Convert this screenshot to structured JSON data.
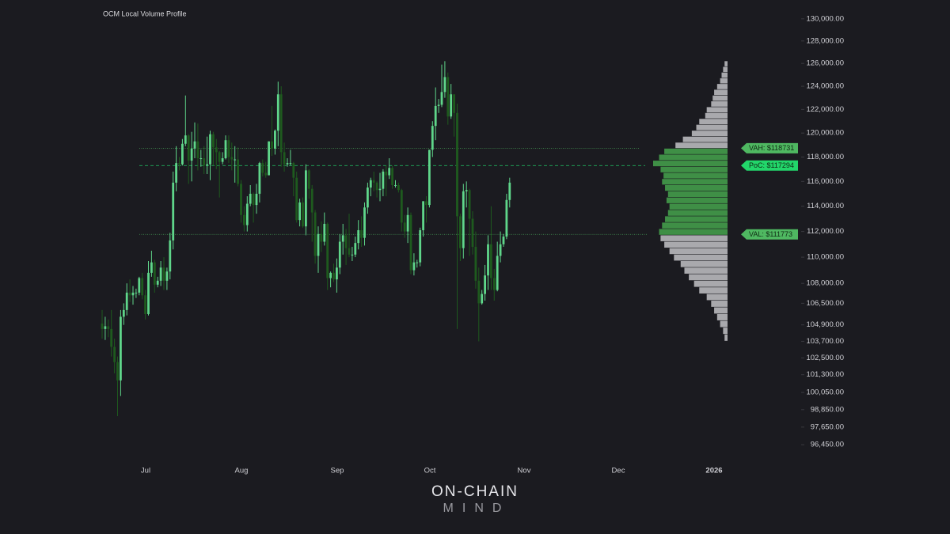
{
  "chart_data": {
    "type": "candlestick",
    "title": "OCM Local Volume Profile",
    "brand": {
      "line1": "ON-CHAIN",
      "line2": "MIND"
    },
    "log_scale": true,
    "ylim": [
      95500,
      131000
    ],
    "yticks": [
      {
        "value": 130000,
        "label": "130,000.00"
      },
      {
        "value": 128000,
        "label": "128,000.00"
      },
      {
        "value": 126000,
        "label": "126,000.00"
      },
      {
        "value": 124000,
        "label": "124,000.00"
      },
      {
        "value": 122000,
        "label": "122,000.00"
      },
      {
        "value": 120000,
        "label": "120,000.00"
      },
      {
        "value": 118000,
        "label": "118,000.00"
      },
      {
        "value": 116000,
        "label": "116,000.00"
      },
      {
        "value": 114000,
        "label": "114,000.00"
      },
      {
        "value": 112000,
        "label": "112,000.00"
      },
      {
        "value": 110000,
        "label": "110,000.00"
      },
      {
        "value": 108000,
        "label": "108,000.00"
      },
      {
        "value": 106500,
        "label": "106,500.00"
      },
      {
        "value": 104900,
        "label": "104,900.00"
      },
      {
        "value": 103700,
        "label": "103,700.00"
      },
      {
        "value": 102500,
        "label": "102,500.00"
      },
      {
        "value": 101300,
        "label": "101,300.00"
      },
      {
        "value": 100050,
        "label": "100,050.00"
      },
      {
        "value": 98850,
        "label": "98,850.00"
      },
      {
        "value": 97650,
        "label": "97,650.00"
      },
      {
        "value": 96450,
        "label": "96,450.00"
      }
    ],
    "xticks": [
      "Jul",
      "Aug",
      "Sep",
      "Oct",
      "Nov",
      "Dec",
      "2026"
    ],
    "up_color": "#5fd68a",
    "down_color": "#1e5a1e",
    "candles": [
      [
        105000,
        106000,
        103900,
        104600
      ],
      [
        104600,
        105500,
        103800,
        104800
      ],
      [
        104800,
        105300,
        104000,
        104600
      ],
      [
        104600,
        106000,
        102600,
        103300
      ],
      [
        103300,
        103900,
        101400,
        102200
      ],
      [
        102200,
        102600,
        98400,
        100900
      ],
      [
        100900,
        106000,
        99800,
        105500
      ],
      [
        105500,
        106500,
        104900,
        106000
      ],
      [
        106000,
        108000,
        105600,
        107300
      ],
      [
        107300,
        108300,
        106600,
        107100
      ],
      [
        107100,
        107800,
        106400,
        107300
      ],
      [
        107300,
        107600,
        106900,
        107300
      ],
      [
        107300,
        108500,
        107100,
        108400
      ],
      [
        108400,
        108800,
        106800,
        107100
      ],
      [
        107100,
        107500,
        105300,
        105700
      ],
      [
        105700,
        109700,
        105600,
        108800
      ],
      [
        108800,
        110500,
        108500,
        109600
      ],
      [
        109600,
        109800,
        107300,
        107900
      ],
      [
        107900,
        108500,
        107700,
        108200
      ],
      [
        108200,
        109700,
        107800,
        109200
      ],
      [
        109200,
        110000,
        107500,
        108200
      ],
      [
        108200,
        109200,
        107500,
        108900
      ],
      [
        108900,
        111900,
        108300,
        111300
      ],
      [
        111300,
        116800,
        110600,
        115900
      ],
      [
        115900,
        118900,
        115200,
        117500
      ],
      [
        117500,
        118000,
        116900,
        117400
      ],
      [
        117400,
        119500,
        117300,
        119100
      ],
      [
        119100,
        123200,
        118900,
        119800
      ],
      [
        119800,
        119900,
        115800,
        117700
      ],
      [
        117700,
        120100,
        116000,
        118700
      ],
      [
        118700,
        120900,
        117900,
        119300
      ],
      [
        119300,
        120800,
        116900,
        117900
      ],
      [
        117900,
        118600,
        117200,
        117900
      ],
      [
        117900,
        118900,
        116600,
        117300
      ],
      [
        117300,
        119700,
        116600,
        117400
      ],
      [
        117400,
        120200,
        116100,
        119900
      ],
      [
        119900,
        120100,
        117300,
        118800
      ],
      [
        118800,
        119500,
        117000,
        118400
      ],
      [
        118400,
        118500,
        114700,
        117600
      ],
      [
        117600,
        118400,
        117400,
        117900
      ],
      [
        117900,
        119800,
        117800,
        119400
      ],
      [
        119400,
        119800,
        117500,
        118000
      ],
      [
        118000,
        119200,
        116900,
        117800
      ],
      [
        117800,
        118900,
        115900,
        117800
      ],
      [
        117800,
        118800,
        115600,
        115800
      ],
      [
        115800,
        116100,
        112700,
        113300
      ],
      [
        113300,
        114000,
        112000,
        112500
      ],
      [
        112500,
        114800,
        112000,
        114200
      ],
      [
        114200,
        115700,
        114000,
        115000
      ],
      [
        115000,
        115100,
        112700,
        114100
      ],
      [
        114100,
        115800,
        113400,
        115000
      ],
      [
        115000,
        117600,
        114300,
        117500
      ],
      [
        117500,
        117800,
        116400,
        116700
      ],
      [
        116700,
        117600,
        116300,
        116500
      ],
      [
        116500,
        119300,
        116500,
        119300
      ],
      [
        119300,
        122300,
        118100,
        118700
      ],
      [
        118700,
        120300,
        118200,
        120200
      ],
      [
        120200,
        124400,
        118900,
        123300
      ],
      [
        123300,
        124000,
        117200,
        118400
      ],
      [
        118400,
        119200,
        116800,
        117400
      ],
      [
        117400,
        117900,
        117200,
        117500
      ],
      [
        117500,
        118600,
        117300,
        117500
      ],
      [
        117500,
        117600,
        114800,
        116300
      ],
      [
        116300,
        116800,
        112700,
        112900
      ],
      [
        112900,
        114600,
        112400,
        114300
      ],
      [
        114300,
        114700,
        112300,
        112400
      ],
      [
        112400,
        117400,
        111700,
        116900
      ],
      [
        116900,
        117000,
        114600,
        115400
      ],
      [
        115400,
        115700,
        111200,
        113500
      ],
      [
        113500,
        113700,
        109500,
        110100
      ],
      [
        110100,
        112400,
        108800,
        111800
      ],
      [
        111800,
        112800,
        110400,
        111200
      ],
      [
        111200,
        113500,
        110900,
        112600
      ],
      [
        112600,
        112700,
        107500,
        108400
      ],
      [
        108400,
        108900,
        107700,
        108800
      ],
      [
        108800,
        109500,
        108100,
        108300
      ],
      [
        108300,
        109900,
        107300,
        109200
      ],
      [
        109200,
        111800,
        108700,
        111200
      ],
      [
        111200,
        112600,
        110200,
        111700
      ],
      [
        111700,
        112200,
        109400,
        110700
      ],
      [
        110700,
        113400,
        110000,
        110200
      ],
      [
        110200,
        110800,
        109700,
        110200
      ],
      [
        110200,
        111600,
        110000,
        111100
      ],
      [
        111100,
        112900,
        110600,
        112100
      ],
      [
        112100,
        113200,
        110800,
        111500
      ],
      [
        111500,
        114300,
        110900,
        113900
      ],
      [
        113900,
        115900,
        113400,
        115500
      ],
      [
        115500,
        116300,
        114800,
        116100
      ],
      [
        116100,
        116800,
        115200,
        115900
      ],
      [
        115900,
        116000,
        114700,
        115300
      ],
      [
        115300,
        116700,
        114400,
        115400
      ],
      [
        115400,
        117000,
        114800,
        116800
      ],
      [
        116800,
        117300,
        114800,
        116500
      ],
      [
        116500,
        117900,
        116200,
        117100
      ],
      [
        117100,
        117300,
        115400,
        115700
      ],
      [
        115700,
        116100,
        115500,
        115700
      ],
      [
        115700,
        115900,
        115100,
        115300
      ],
      [
        115300,
        115400,
        112000,
        112700
      ],
      [
        112700,
        113300,
        111500,
        112000
      ],
      [
        112000,
        113900,
        111100,
        113300
      ],
      [
        113300,
        113500,
        108700,
        109000
      ],
      [
        109000,
        110300,
        108600,
        109600
      ],
      [
        109600,
        109800,
        109200,
        109600
      ],
      [
        109600,
        112300,
        109300,
        112100
      ],
      [
        112100,
        114400,
        111600,
        114400
      ],
      [
        114400,
        114800,
        112700,
        114100
      ],
      [
        114100,
        118600,
        113900,
        118600
      ],
      [
        118600,
        121000,
        118000,
        120600
      ],
      [
        120600,
        123900,
        119400,
        122300
      ],
      [
        122300,
        122900,
        121700,
        122400
      ],
      [
        122400,
        125900,
        122200,
        123500
      ],
      [
        123500,
        126200,
        123000,
        124800
      ],
      [
        124800,
        125200,
        120700,
        121400
      ],
      [
        121400,
        124200,
        121200,
        123300
      ],
      [
        123300,
        123300,
        119700,
        121700
      ],
      [
        121700,
        122500,
        104600,
        113200
      ],
      [
        113200,
        113400,
        109700,
        110700
      ],
      [
        110700,
        115800,
        109900,
        115200
      ],
      [
        115200,
        116000,
        113900,
        115300
      ],
      [
        115300,
        115400,
        110100,
        113000
      ],
      [
        113000,
        113600,
        110200,
        110800
      ],
      [
        110800,
        112000,
        107600,
        108200
      ],
      [
        108200,
        109200,
        103700,
        106500
      ],
      [
        106500,
        107500,
        106400,
        107200
      ],
      [
        107200,
        109400,
        106700,
        108600
      ],
      [
        108600,
        111700,
        107500,
        111000
      ],
      [
        111000,
        114000,
        107500,
        108400
      ],
      [
        108400,
        109100,
        106700,
        107500
      ],
      [
        107500,
        111200,
        107400,
        110100
      ],
      [
        110100,
        112000,
        109600,
        111000
      ],
      [
        111000,
        111800,
        110800,
        111600
      ],
      [
        111600,
        115000,
        111400,
        114500
      ],
      [
        114500,
        116300,
        113900,
        115900
      ]
    ],
    "profile": {
      "bins": [
        103700,
        104200,
        104700,
        105200,
        105700,
        106200,
        106700,
        107200,
        107700,
        108200,
        108700,
        109200,
        109700,
        110200,
        110700,
        111200,
        111700,
        112200,
        112700,
        113200,
        113700,
        114200,
        114700,
        115200,
        115700,
        116200,
        116700,
        117200,
        117700,
        118200,
        118700,
        119200,
        119700,
        120200,
        120700,
        121200,
        121700,
        122200,
        122700,
        123200,
        123700,
        124200,
        124700,
        125200,
        125700,
        126200
      ],
      "values": [
        4,
        6,
        10,
        14,
        18,
        22,
        28,
        38,
        45,
        52,
        58,
        63,
        72,
        78,
        85,
        90,
        92,
        88,
        84,
        80,
        78,
        82,
        80,
        84,
        88,
        86,
        90,
        100,
        92,
        85,
        70,
        60,
        48,
        42,
        38,
        30,
        28,
        22,
        20,
        18,
        14,
        10,
        8,
        6,
        4
      ],
      "value_area_color": "#3f8f46",
      "outside_color": "#a9a9ad"
    },
    "levels": [
      {
        "name": "VAH",
        "value": 118731,
        "label": "VAH: $118731",
        "color": "#4fb861",
        "style": "dotted"
      },
      {
        "name": "PoC",
        "value": 117294,
        "label": "PoC: $117294",
        "color": "#22d66a",
        "style": "dashed"
      },
      {
        "name": "VAL",
        "value": 111773,
        "label": "VAL: $111773",
        "color": "#4fb861",
        "style": "dotted"
      }
    ]
  }
}
